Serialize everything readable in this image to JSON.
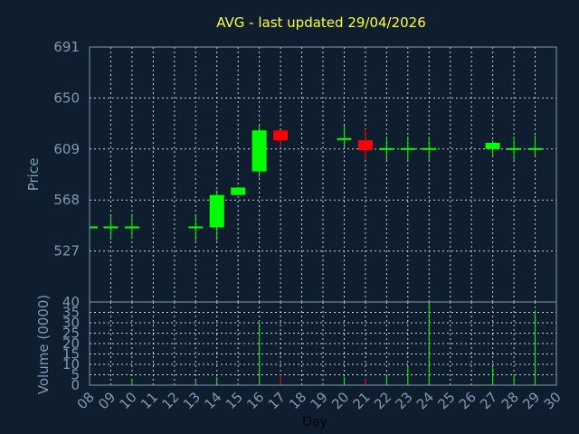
{
  "chart_data": {
    "type": "candlestick",
    "title": "AVG - last updated 29/04/2026",
    "xlabel": "Day",
    "ylabel": "Price",
    "volume_ylabel": "Volume (0000)",
    "x_ticks": [
      "08",
      "09",
      "10",
      "11",
      "12",
      "13",
      "14",
      "15",
      "16",
      "17",
      "18",
      "19",
      "20",
      "21",
      "22",
      "23",
      "24",
      "25",
      "26",
      "27",
      "28",
      "29",
      "30"
    ],
    "price_ticks": [
      527,
      568,
      609,
      650,
      691
    ],
    "price_ylim": [
      486,
      691
    ],
    "volume_ticks": [
      0,
      5,
      10,
      15,
      20,
      25,
      30,
      35,
      40
    ],
    "volume_ylim": [
      0,
      40
    ],
    "grid": true,
    "up_color": "#00ff00",
    "down_color": "#ff0000",
    "candles": [
      {
        "day": "08",
        "open": 546,
        "high": 546,
        "low": 546,
        "close": 546,
        "volume": 0
      },
      {
        "day": "09",
        "open": 546,
        "high": 555,
        "low": 536,
        "close": 546,
        "volume": 0
      },
      {
        "day": "10",
        "open": 546,
        "high": 556,
        "low": 537,
        "close": 546,
        "volume": 3
      },
      {
        "day": "13",
        "open": 546,
        "high": 556,
        "low": 535,
        "close": 546,
        "volume": 2
      },
      {
        "day": "14",
        "open": 546,
        "high": 576,
        "low": 535,
        "close": 572,
        "volume": 4
      },
      {
        "day": "15",
        "open": 572,
        "high": 578,
        "low": 572,
        "close": 578,
        "volume": 1
      },
      {
        "day": "16",
        "open": 591,
        "high": 629,
        "low": 586,
        "close": 624,
        "volume": 30
      },
      {
        "day": "17",
        "open": 624,
        "high": 624,
        "low": 610,
        "close": 616,
        "volume": 5
      },
      {
        "day": "20",
        "open": 617,
        "high": 628,
        "low": 610,
        "close": 617,
        "volume": 4
      },
      {
        "day": "21",
        "open": 616,
        "high": 625,
        "low": 600,
        "close": 608,
        "volume": 3
      },
      {
        "day": "22",
        "open": 609,
        "high": 619,
        "low": 600,
        "close": 609,
        "volume": 5
      },
      {
        "day": "23",
        "open": 609,
        "high": 619,
        "low": 600,
        "close": 609,
        "volume": 9
      },
      {
        "day": "24",
        "open": 609,
        "high": 619,
        "low": 600,
        "close": 609,
        "volume": 40
      },
      {
        "day": "27",
        "open": 609,
        "high": 616,
        "low": 603,
        "close": 614,
        "volume": 9
      },
      {
        "day": "28",
        "open": 609,
        "high": 619,
        "low": 600,
        "close": 609,
        "volume": 5
      },
      {
        "day": "29",
        "open": 609,
        "high": 620,
        "low": 603,
        "close": 609,
        "volume": 36
      }
    ]
  }
}
